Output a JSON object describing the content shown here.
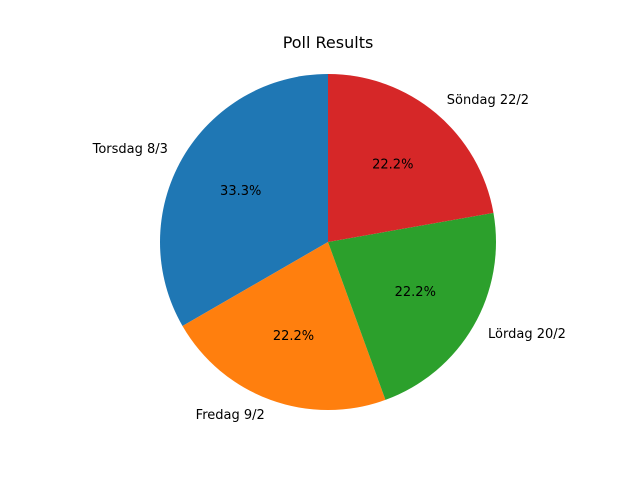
{
  "chart_data": {
    "type": "pie",
    "title": "Poll Results",
    "slices": [
      {
        "label": "Torsdag 8/3",
        "value": 33.3,
        "display": "33.3%",
        "color": "#1f77b4"
      },
      {
        "label": "Fredag 9/2",
        "value": 22.2,
        "display": "22.2%",
        "color": "#ff7f0e"
      },
      {
        "label": "Lördag 20/2",
        "value": 22.2,
        "display": "22.2%",
        "color": "#2ca02c"
      },
      {
        "label": "Söndag 22/2",
        "value": 22.2,
        "display": "22.2%",
        "color": "#d62728"
      }
    ],
    "start_angle_deg": 90,
    "direction": "counterclockwise"
  }
}
